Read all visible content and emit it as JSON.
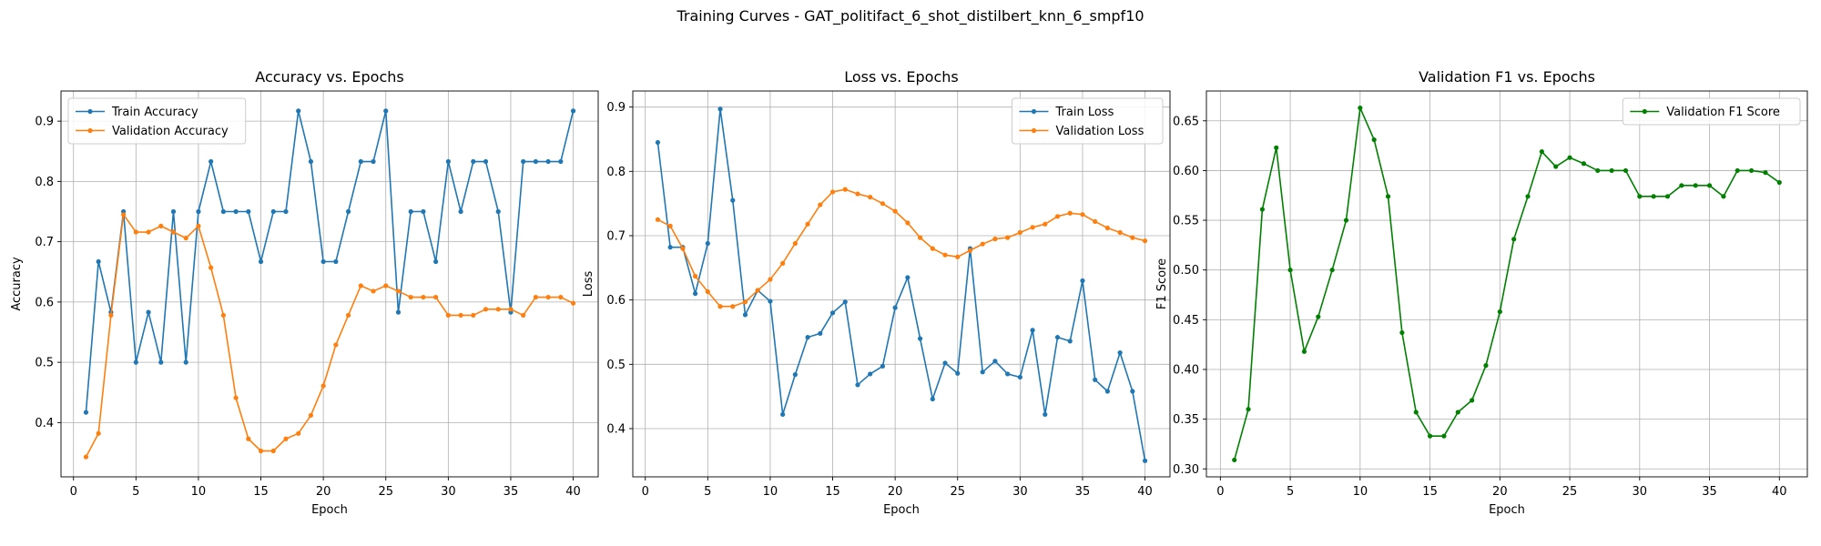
{
  "figure": {
    "suptitle": "Training Curves - GAT_politifact_6_shot_distilbert_knn_6_smpf10"
  },
  "colors": {
    "train": "#1f77b4",
    "validation": "#ff7f0e",
    "f1": "#008000",
    "grid": "#b0b0b0"
  },
  "chart_data": [
    {
      "type": "line",
      "title": "Accuracy vs. Epochs",
      "xlabel": "Epoch",
      "ylabel": "Accuracy",
      "xlim": [
        -1,
        42
      ],
      "ylim": [
        0.31,
        0.95
      ],
      "xticks": [
        0,
        5,
        10,
        15,
        20,
        25,
        30,
        35,
        40
      ],
      "yticks": [
        0.4,
        0.5,
        0.6,
        0.7,
        0.8,
        0.9
      ],
      "grid": true,
      "legend_position": "top-left",
      "x": [
        1,
        2,
        3,
        4,
        5,
        6,
        7,
        8,
        9,
        10,
        11,
        12,
        13,
        14,
        15,
        16,
        17,
        18,
        19,
        20,
        21,
        22,
        23,
        24,
        25,
        26,
        27,
        28,
        29,
        30,
        31,
        32,
        33,
        34,
        35,
        36,
        37,
        38,
        39,
        40
      ],
      "series": [
        {
          "name": "Train Accuracy",
          "color": "#1f77b4",
          "values": [
            0.417,
            0.667,
            0.583,
            0.75,
            0.5,
            0.583,
            0.5,
            0.75,
            0.5,
            0.75,
            0.833,
            0.75,
            0.75,
            0.75,
            0.667,
            0.75,
            0.75,
            0.917,
            0.833,
            0.667,
            0.667,
            0.75,
            0.833,
            0.833,
            0.917,
            0.583,
            0.75,
            0.75,
            0.667,
            0.833,
            0.75,
            0.833,
            0.833,
            0.75,
            0.583,
            0.833,
            0.833,
            0.833,
            0.833,
            0.917
          ]
        },
        {
          "name": "Validation Accuracy",
          "color": "#ff7f0e",
          "values": [
            0.343,
            0.382,
            0.578,
            0.745,
            0.716,
            0.716,
            0.726,
            0.716,
            0.706,
            0.726,
            0.657,
            0.578,
            0.441,
            0.373,
            0.353,
            0.353,
            0.373,
            0.382,
            0.412,
            0.461,
            0.529,
            0.578,
            0.627,
            0.618,
            0.627,
            0.618,
            0.608,
            0.608,
            0.608,
            0.578,
            0.578,
            0.578,
            0.588,
            0.588,
            0.588,
            0.578,
            0.608,
            0.608,
            0.608,
            0.598
          ]
        }
      ]
    },
    {
      "type": "line",
      "title": "Loss vs. Epochs",
      "xlabel": "Epoch",
      "ylabel": "Loss",
      "xlim": [
        -1,
        42
      ],
      "ylim": [
        0.325,
        0.925
      ],
      "xticks": [
        0,
        5,
        10,
        15,
        20,
        25,
        30,
        35,
        40
      ],
      "yticks": [
        0.4,
        0.5,
        0.6,
        0.7,
        0.8,
        0.9
      ],
      "grid": true,
      "legend_position": "top-right",
      "x": [
        1,
        2,
        3,
        4,
        5,
        6,
        7,
        8,
        9,
        10,
        11,
        12,
        13,
        14,
        15,
        16,
        17,
        18,
        19,
        20,
        21,
        22,
        23,
        24,
        25,
        26,
        27,
        28,
        29,
        30,
        31,
        32,
        33,
        34,
        35,
        36,
        37,
        38,
        39,
        40
      ],
      "series": [
        {
          "name": "Train Loss",
          "color": "#1f77b4",
          "values": [
            0.845,
            0.682,
            0.682,
            0.61,
            0.688,
            0.897,
            0.755,
            0.577,
            0.615,
            0.598,
            0.422,
            0.484,
            0.542,
            0.548,
            0.58,
            0.597,
            0.468,
            0.485,
            0.497,
            0.588,
            0.635,
            0.54,
            0.446,
            0.502,
            0.486,
            0.68,
            0.488,
            0.505,
            0.485,
            0.48,
            0.553,
            0.422,
            0.542,
            0.536,
            0.63,
            0.476,
            0.458,
            0.518,
            0.458,
            0.35
          ]
        },
        {
          "name": "Validation Loss",
          "color": "#ff7f0e",
          "values": [
            0.725,
            0.715,
            0.68,
            0.637,
            0.613,
            0.59,
            0.59,
            0.597,
            0.615,
            0.632,
            0.657,
            0.688,
            0.718,
            0.748,
            0.768,
            0.772,
            0.765,
            0.76,
            0.75,
            0.738,
            0.72,
            0.697,
            0.68,
            0.67,
            0.667,
            0.677,
            0.687,
            0.695,
            0.697,
            0.705,
            0.713,
            0.718,
            0.73,
            0.735,
            0.733,
            0.722,
            0.712,
            0.705,
            0.697,
            0.692
          ]
        }
      ]
    },
    {
      "type": "line",
      "title": "Validation F1 vs. Epochs",
      "xlabel": "Epoch",
      "ylabel": "F1 Score",
      "xlim": [
        -1,
        42
      ],
      "ylim": [
        0.292,
        0.68
      ],
      "xticks": [
        0,
        5,
        10,
        15,
        20,
        25,
        30,
        35,
        40
      ],
      "yticks": [
        0.3,
        0.35,
        0.4,
        0.45,
        0.5,
        0.55,
        0.6,
        0.65
      ],
      "grid": true,
      "legend_position": "top-right",
      "x": [
        1,
        2,
        3,
        4,
        5,
        6,
        7,
        8,
        9,
        10,
        11,
        12,
        13,
        14,
        15,
        16,
        17,
        18,
        19,
        20,
        21,
        22,
        23,
        24,
        25,
        26,
        27,
        28,
        29,
        30,
        31,
        32,
        33,
        34,
        35,
        36,
        37,
        38,
        39,
        40
      ],
      "series": [
        {
          "name": "Validation F1 Score",
          "color": "#008000",
          "values": [
            0.309,
            0.36,
            0.561,
            0.623,
            0.5,
            0.418,
            0.453,
            0.5,
            0.55,
            0.663,
            0.631,
            0.574,
            0.437,
            0.357,
            0.333,
            0.333,
            0.357,
            0.369,
            0.404,
            0.458,
            0.531,
            0.574,
            0.619,
            0.604,
            0.613,
            0.607,
            0.6,
            0.6,
            0.6,
            0.574,
            0.574,
            0.574,
            0.585,
            0.585,
            0.585,
            0.574,
            0.6,
            0.6,
            0.598,
            0.588
          ]
        }
      ]
    }
  ]
}
